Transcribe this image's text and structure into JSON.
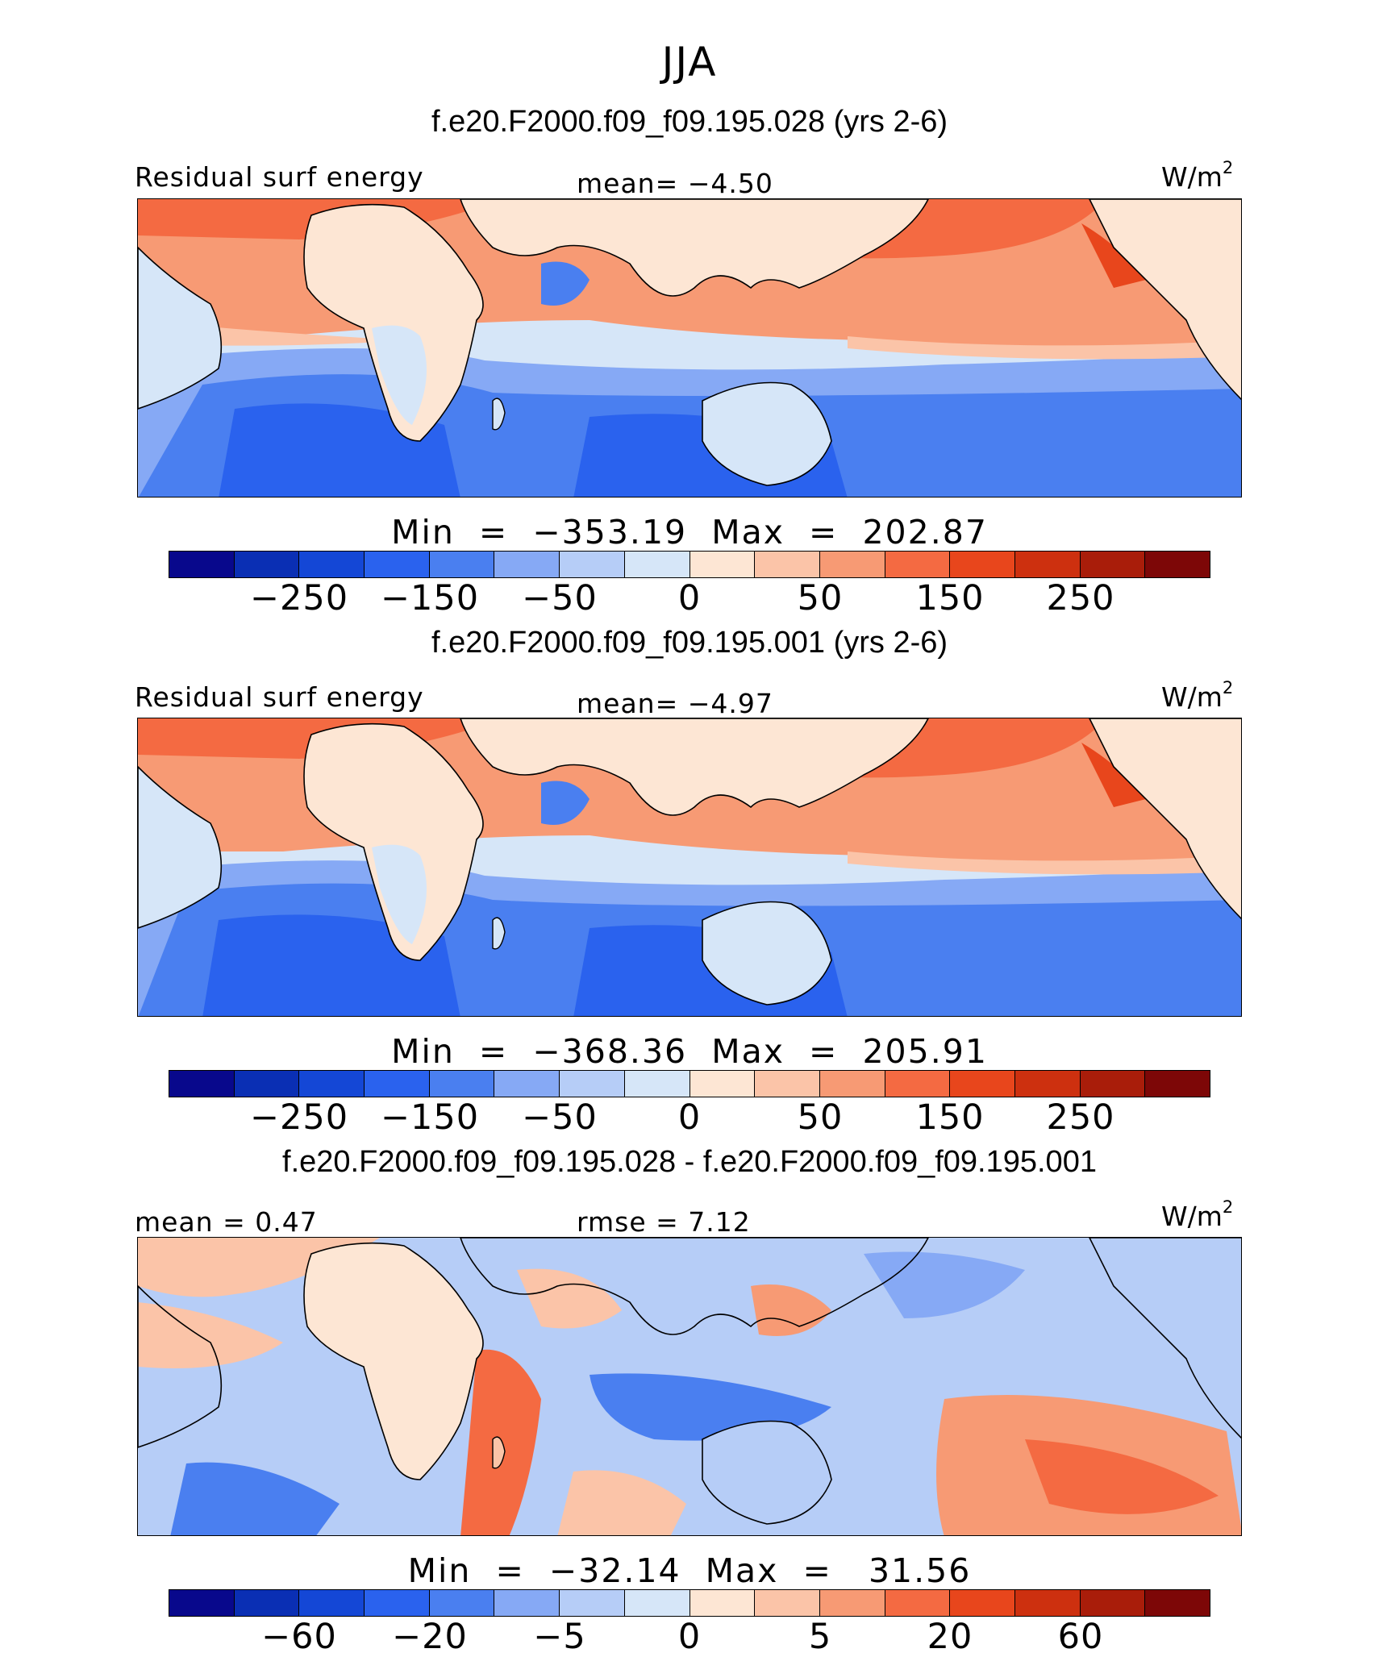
{
  "season": "JJA",
  "palette": [
    "#08088c",
    "#0a2fb4",
    "#1447d6",
    "#2a62ee",
    "#4a7ff0",
    "#86a9f5",
    "#b6cdf7",
    "#d6e6f8",
    "#fde6d4",
    "#fbc4a8",
    "#f79a74",
    "#f46a42",
    "#e8461c",
    "#cd300f",
    "#a91d0a",
    "#7d0707"
  ],
  "panels": [
    {
      "title": "f.e20.F2000.f09_f09.195.028 (yrs 2-6)",
      "left_label": "Residual surf energy",
      "center_label": "mean=  −4.50",
      "units": "W/m",
      "units_sup": "2",
      "minmax": "Min  =  −353.19  Max  =  202.87",
      "ticks": [
        "−250",
        "−150",
        "−50",
        "0",
        "50",
        "150",
        "250"
      ]
    },
    {
      "title": "f.e20.F2000.f09_f09.195.001 (yrs 2-6)",
      "left_label": "Residual surf energy",
      "center_label": "mean=  −4.97",
      "units": "W/m",
      "units_sup": "2",
      "minmax": "Min  =  −368.36  Max  =  205.91",
      "ticks": [
        "−250",
        "−150",
        "−50",
        "0",
        "50",
        "150",
        "250"
      ]
    },
    {
      "title": "f.e20.F2000.f09_f09.195.028 - f.e20.F2000.f09_f09.195.001",
      "left_label": "mean =   0.47",
      "center_label": "rmse =   7.12",
      "units": "W/m",
      "units_sup": "2",
      "minmax": "Min  =  −32.14  Max  =   31.56",
      "ticks": [
        "−60",
        "−20",
        "−5",
        "0",
        "5",
        "20",
        "60"
      ]
    }
  ]
}
